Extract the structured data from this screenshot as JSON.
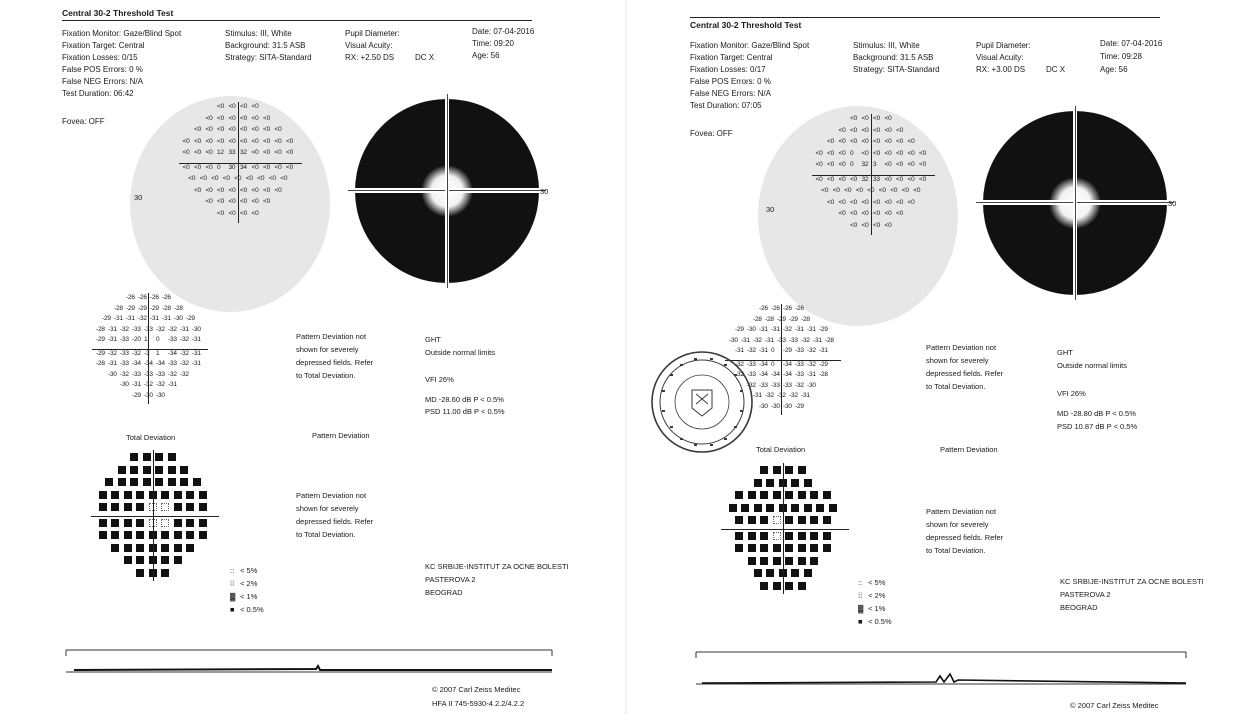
{
  "reports": [
    {
      "id": "left",
      "title": "Central 30-2 Threshold Test",
      "col1": [
        "Fixation Monitor: Gaze/Blind Spot",
        "Fixation Target: Central",
        "Fixation Losses: 0/15",
        "False POS Errors:  0 %",
        "False NEG Errors: N/A",
        "Test Duration: 06:42"
      ],
      "col2": [
        "Stimulus: III, White",
        "Background: 31.5 ASB",
        "Strategy: SITA-Standard"
      ],
      "col3": [
        "Pupil Diameter:",
        "Visual Acuity:",
        "RX: +2.50 DS"
      ],
      "dcx": "DC  X",
      "col4": [
        "Date: 07-04-2016",
        "Time: 09:20",
        "Age: 56"
      ],
      "fovea": "Fovea: OFF",
      "axis_label_left": "30",
      "axis_label_right": "30",
      "threshold_rows": [
        [
          "<0",
          "<0",
          "<0",
          "<0"
        ],
        [
          "<0",
          "<0",
          "<0",
          "<0",
          "<0",
          "<0"
        ],
        [
          "<0",
          "<0",
          "<0",
          "<0",
          "<0",
          "<0",
          "<0",
          "<0"
        ],
        [
          "<0",
          "<0",
          "<0",
          "<0",
          "<0",
          "<0",
          "<0",
          "<0",
          "<0",
          "<0"
        ],
        [
          "<0",
          "<0",
          "<0",
          "12",
          "33",
          "32",
          "<0",
          "<0",
          "<0",
          "<0"
        ],
        [
          "<0",
          "<0",
          "<0",
          "0",
          "30",
          "34",
          "<0",
          "<0",
          "<0",
          "<0"
        ],
        [
          "<0",
          "<0",
          "<0",
          "<0",
          "<0",
          "<0",
          "<0",
          "<0",
          "<0"
        ],
        [
          "<0",
          "<0",
          "<0",
          "<0",
          "<0",
          "<0",
          "<0",
          "<0"
        ],
        [
          "<0",
          "<0",
          "<0",
          "<0",
          "<0",
          "<0"
        ],
        [
          "<0",
          "<0",
          "<0",
          "<0"
        ]
      ],
      "total_dev_rows": [
        [
          "-26",
          "-26",
          "-26",
          "-26"
        ],
        [
          "-28",
          "-29",
          "-29",
          "-29",
          "-28",
          "-28"
        ],
        [
          "-29",
          "-31",
          "-31",
          "-32",
          "-31",
          "-31",
          "-30",
          "-29"
        ],
        [
          "-28",
          "-31",
          "-32",
          "-33",
          "-33",
          "-32",
          "-32",
          "-31",
          "-30"
        ],
        [
          "-29",
          "-31",
          "-33",
          "-20",
          "1",
          "0",
          "-33",
          "-32",
          "-31"
        ],
        [
          "-29",
          "-32",
          "-33",
          "-32",
          "-3",
          "1",
          "-34",
          "-32",
          "-31"
        ],
        [
          "-28",
          "-31",
          "-33",
          "-34",
          "-34",
          "-34",
          "-33",
          "-32",
          "-31"
        ],
        [
          "-30",
          "-32",
          "-33",
          "-33",
          "-33",
          "-32",
          "-32"
        ],
        [
          "-30",
          "-31",
          "-32",
          "-32",
          "-31"
        ],
        [
          "-29",
          "-30",
          "-30"
        ]
      ],
      "pattern_note": [
        "Pattern Deviation not",
        "shown for severely",
        "depressed fields. Refer",
        "to Total Deviation."
      ],
      "ght_label": "GHT",
      "ght_value": "Outside normal limits",
      "vfi": "VFI   26%",
      "md": "MD    -28.60 dB  P < 0.5%",
      "psd": "PSD   11.00 dB  P < 0.5%",
      "total_dev_label": "Total Deviation",
      "pattern_dev_label": "Pattern Deviation",
      "legend": [
        {
          "symbol": "::",
          "text": "< 5%"
        },
        {
          "symbol": "⁞⁞",
          "text": "< 2%"
        },
        {
          "symbol": "▓",
          "text": "< 1%"
        },
        {
          "symbol": "■",
          "text": "< 0.5%"
        }
      ],
      "institution": [
        "KC SRBIJE-INSTITUT ZA OCNE BOLESTI",
        "PASTEROVA 2",
        "BEOGRAD"
      ],
      "copyright": "© 2007 Carl Zeiss Meditec",
      "model": "HFA II 745-5930-4.2.2/4.2.2"
    },
    {
      "id": "right",
      "title": "Central 30-2 Threshold Test",
      "col1": [
        "Fixation Monitor: Gaze/Blind Spot",
        "Fixation Target: Central",
        "Fixation Losses: 0/17",
        "False POS Errors:  0 %",
        "False NEG Errors: N/A",
        "Test Duration: 07:05"
      ],
      "col2": [
        "Stimulus: III, White",
        "Background: 31.5 ASB",
        "Strategy: SITA-Standard"
      ],
      "col3": [
        "Pupil Diameter:",
        "Visual Acuity:",
        "RX: +3.00 DS"
      ],
      "dcx": "DC  X",
      "col4": [
        "Date: 07-04-2016",
        "Time: 09:28",
        "Age: 56"
      ],
      "fovea": "Fovea: OFF",
      "axis_label_left": "30",
      "axis_label_right": "30",
      "threshold_rows": [
        [
          "<0",
          "<0",
          "<0",
          "<0"
        ],
        [
          "<0",
          "<0",
          "<0",
          "<0",
          "<0",
          "<0"
        ],
        [
          "<0",
          "<0",
          "<0",
          "<0",
          "<0",
          "<0",
          "<0",
          "<0"
        ],
        [
          "<0",
          "<0",
          "<0",
          "0",
          "<0",
          "<0",
          "<0",
          "<0",
          "<0",
          "<0"
        ],
        [
          "<0",
          "<0",
          "<0",
          "0",
          "32",
          "3",
          "<0",
          "<0",
          "<0",
          "<0"
        ],
        [
          "<0",
          "<0",
          "<0",
          "<0",
          "32",
          "33",
          "<0",
          "<0",
          "<0",
          "<0"
        ],
        [
          "<0",
          "<0",
          "<0",
          "<0",
          "<0",
          "<0",
          "<0",
          "<0",
          "<0"
        ],
        [
          "<0",
          "<0",
          "<0",
          "<0",
          "<0",
          "<0",
          "<0",
          "<0"
        ],
        [
          "<0",
          "<0",
          "<0",
          "<0",
          "<0",
          "<0"
        ],
        [
          "<0",
          "<0",
          "<0",
          "<0"
        ]
      ],
      "total_dev_rows": [
        [
          "-26",
          "-26",
          "-26",
          "-26"
        ],
        [
          "-28",
          "-28",
          "-29",
          "-29",
          "-28"
        ],
        [
          "-29",
          "-30",
          "-31",
          "-31",
          "-32",
          "-31",
          "-31",
          "-29"
        ],
        [
          "-30",
          "-31",
          "-32",
          "-31",
          "-33",
          "-33",
          "-32",
          "-31",
          "-28"
        ],
        [
          "-31",
          "-32",
          "-31",
          "0",
          "-29",
          "-33",
          "-32",
          "-31"
        ],
        [
          "-32",
          "-33",
          "-34",
          "0",
          "-34",
          "-33",
          "-32",
          "-29"
        ],
        [
          "-32",
          "-33",
          "-34",
          "-34",
          "-34",
          "-33",
          "-31",
          "-28"
        ],
        [
          "-32",
          "-33",
          "-33",
          "-33",
          "-32",
          "-30"
        ],
        [
          "-31",
          "-32",
          "-32",
          "-32",
          "-31"
        ],
        [
          "-30",
          "-30",
          "-30",
          "-29"
        ]
      ],
      "pattern_note": [
        "Pattern Deviation not",
        "shown for severely",
        "depressed fields. Refer",
        "to Total Deviation."
      ],
      "ght_label": "GHT",
      "ght_value": "Outside normal limits",
      "vfi": "VFI   26%",
      "md": "MD    -28.80 dB  P < 0.5%",
      "psd": "PSD   10.87 dB  P < 0.5%",
      "total_dev_label": "Total Deviation",
      "pattern_dev_label": "Pattern Deviation",
      "legend": [
        {
          "symbol": "::",
          "text": "< 5%"
        },
        {
          "symbol": "⁞⁞",
          "text": "< 2%"
        },
        {
          "symbol": "▓",
          "text": "< 1%"
        },
        {
          "symbol": "■",
          "text": "< 0.5%"
        }
      ],
      "institution": [
        "KC SRBIJE-INSTITUT ZA OCNE BOLESTI",
        "PASTEROVA 2",
        "BEOGRAD"
      ],
      "copyright": "© 2007 Carl Zeiss Meditec",
      "model": ""
    }
  ],
  "colors": {
    "ink": "#1a1a1a",
    "paper": "#ffffff",
    "gray_field": "#d4d4d4",
    "stamp": "#3a3a3a"
  }
}
